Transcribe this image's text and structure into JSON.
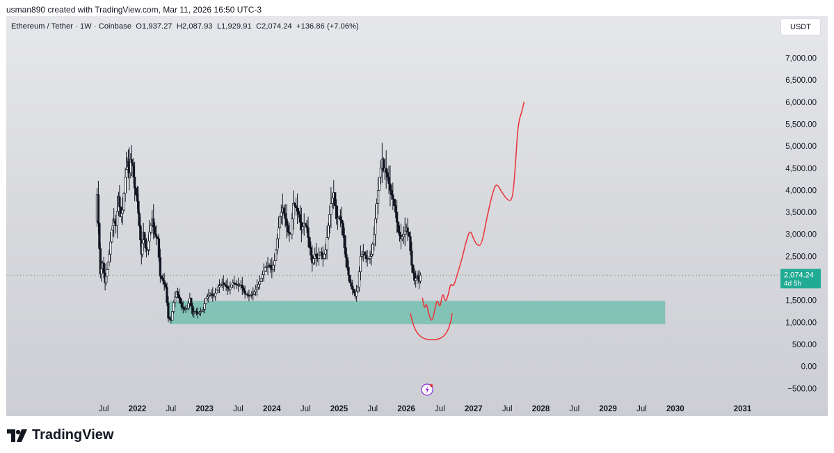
{
  "header": {
    "created_by": "usman890 created with TradingView.com, Mar 11, 2026 16:50 UTC-3"
  },
  "legend": {
    "symbol": "Ethereum / Tether · 1W · Coinbase",
    "open": "O1,937.27",
    "high": "H2,087.93",
    "low": "L1,929.91",
    "close": "C2,074.24",
    "change": "+136.86 (+7.06%)"
  },
  "currency_label": "USDT",
  "price_label": {
    "price": "2,074.24",
    "countdown": "4d 5h",
    "color": "#22ab94"
  },
  "brand": {
    "name": "TradingView"
  },
  "colors": {
    "candle": "#131722",
    "zone": "#7ac1b3",
    "drawing": "#e8383d",
    "text": "#131722"
  },
  "chart_data": {
    "type": "candlestick",
    "x_axis": {
      "tick_labels": [
        "Jul",
        "2022",
        "Jul",
        "2023",
        "Jul",
        "2024",
        "Jul",
        "2025",
        "Jul",
        "2026",
        "Jul",
        "2027",
        "Jul",
        "2028",
        "Jul",
        "2029",
        "Jul",
        "2030",
        "2031"
      ],
      "tick_dates": [
        2021.5,
        2022.0,
        2022.5,
        2023.0,
        2023.5,
        2024.0,
        2024.5,
        2025.0,
        2025.5,
        2026.0,
        2026.5,
        2027.0,
        2027.5,
        2028.0,
        2028.5,
        2029.0,
        2029.5,
        2030.0,
        2031.0
      ],
      "year_labels_bold": [
        "2022",
        "2023",
        "2024",
        "2025",
        "2026",
        "2027",
        "2028",
        "2029",
        "2030",
        "2031"
      ],
      "range": [
        2020.05,
        2031.45
      ]
    },
    "y_axis": {
      "tick_labels": [
        "7,000.00",
        "6,500.00",
        "6,000.00",
        "5,500.00",
        "5,000.00",
        "4,500.00",
        "4,000.00",
        "3,500.00",
        "3,000.00",
        "2,500.00",
        "1,500.00",
        "1,000.00",
        "500.00",
        "0.00",
        "−500.00"
      ],
      "tick_values": [
        7000,
        6500,
        6000,
        5500,
        5000,
        4500,
        4000,
        3500,
        3000,
        2500,
        1500,
        1000,
        500,
        0,
        -500
      ],
      "range": [
        -700,
        7450
      ],
      "position": "right"
    },
    "last_close": 2074.24,
    "price_path": [
      [
        2021.38,
        3300
      ],
      [
        2021.4,
        3900
      ],
      [
        2021.42,
        3250
      ],
      [
        2021.45,
        2100
      ],
      [
        2021.48,
        2350
      ],
      [
        2021.52,
        1900
      ],
      [
        2021.55,
        2200
      ],
      [
        2021.58,
        2550
      ],
      [
        2021.62,
        3100
      ],
      [
        2021.65,
        3300
      ],
      [
        2021.68,
        3200
      ],
      [
        2021.72,
        3850
      ],
      [
        2021.75,
        3400
      ],
      [
        2021.78,
        3550
      ],
      [
        2021.82,
        4300
      ],
      [
        2021.85,
        4650
      ],
      [
        2021.88,
        4400
      ],
      [
        2021.9,
        4700
      ],
      [
        2021.93,
        4550
      ],
      [
        2021.96,
        4050
      ],
      [
        2022.0,
        3750
      ],
      [
        2022.03,
        3200
      ],
      [
        2022.06,
        2550
      ],
      [
        2022.09,
        3050
      ],
      [
        2022.12,
        2700
      ],
      [
        2022.15,
        2650
      ],
      [
        2022.18,
        3050
      ],
      [
        2022.22,
        3350
      ],
      [
        2022.26,
        3000
      ],
      [
        2022.3,
        2900
      ],
      [
        2022.34,
        2050
      ],
      [
        2022.38,
        1950
      ],
      [
        2022.42,
        1800
      ],
      [
        2022.46,
        1100
      ],
      [
        2022.5,
        1050
      ],
      [
        2022.54,
        1450
      ],
      [
        2022.58,
        1700
      ],
      [
        2022.62,
        1550
      ],
      [
        2022.66,
        1350
      ],
      [
        2022.7,
        1300
      ],
      [
        2022.74,
        1320
      ],
      [
        2022.78,
        1550
      ],
      [
        2022.82,
        1200
      ],
      [
        2022.86,
        1250
      ],
      [
        2022.9,
        1200
      ],
      [
        2022.94,
        1250
      ],
      [
        2022.98,
        1300
      ],
      [
        2023.02,
        1550
      ],
      [
        2023.08,
        1650
      ],
      [
        2023.14,
        1600
      ],
      [
        2023.2,
        1800
      ],
      [
        2023.26,
        1900
      ],
      [
        2023.3,
        1850
      ],
      [
        2023.36,
        1750
      ],
      [
        2023.42,
        1900
      ],
      [
        2023.48,
        1850
      ],
      [
        2023.54,
        1850
      ],
      [
        2023.6,
        1650
      ],
      [
        2023.66,
        1600
      ],
      [
        2023.72,
        1650
      ],
      [
        2023.78,
        1800
      ],
      [
        2023.84,
        2000
      ],
      [
        2023.9,
        2250
      ],
      [
        2023.96,
        2300
      ],
      [
        2024.0,
        2200
      ],
      [
        2024.04,
        2400
      ],
      [
        2024.08,
        2900
      ],
      [
        2024.12,
        3400
      ],
      [
        2024.16,
        3600
      ],
      [
        2024.2,
        3350
      ],
      [
        2024.24,
        3050
      ],
      [
        2024.28,
        3000
      ],
      [
        2024.32,
        3700
      ],
      [
        2024.36,
        3600
      ],
      [
        2024.4,
        3450
      ],
      [
        2024.44,
        3100
      ],
      [
        2024.48,
        3250
      ],
      [
        2024.52,
        3150
      ],
      [
        2024.56,
        2700
      ],
      [
        2024.6,
        2350
      ],
      [
        2024.64,
        2550
      ],
      [
        2024.68,
        2450
      ],
      [
        2024.72,
        2600
      ],
      [
        2024.76,
        2450
      ],
      [
        2024.8,
        2650
      ],
      [
        2024.84,
        3200
      ],
      [
        2024.88,
        3700
      ],
      [
        2024.92,
        3950
      ],
      [
        2024.96,
        3350
      ],
      [
        2025.0,
        3400
      ],
      [
        2025.04,
        3250
      ],
      [
        2025.08,
        2700
      ],
      [
        2025.12,
        2250
      ],
      [
        2025.16,
        1900
      ],
      [
        2025.2,
        1750
      ],
      [
        2025.24,
        1600
      ],
      [
        2025.28,
        1800
      ],
      [
        2025.32,
        2500
      ],
      [
        2025.36,
        2600
      ],
      [
        2025.4,
        2450
      ],
      [
        2025.44,
        2450
      ],
      [
        2025.48,
        2550
      ],
      [
        2025.52,
        3000
      ],
      [
        2025.56,
        3700
      ],
      [
        2025.6,
        4300
      ],
      [
        2025.64,
        4700
      ],
      [
        2025.66,
        4450
      ],
      [
        2025.68,
        4500
      ],
      [
        2025.72,
        4300
      ],
      [
        2025.76,
        4000
      ],
      [
        2025.8,
        3800
      ],
      [
        2025.84,
        3500
      ],
      [
        2025.88,
        3050
      ],
      [
        2025.92,
        2900
      ],
      [
        2025.96,
        3000
      ],
      [
        2026.0,
        3150
      ],
      [
        2026.04,
        2950
      ],
      [
        2026.08,
        2300
      ],
      [
        2026.12,
        1950
      ],
      [
        2026.16,
        2050
      ],
      [
        2026.19,
        1937
      ],
      [
        2026.21,
        2074
      ]
    ],
    "annotations": [
      {
        "type": "zone",
        "label": "",
        "price_range": [
          960,
          1490
        ],
        "x_range": [
          2022.48,
          2029.85
        ],
        "color": "#7ac1b3"
      },
      {
        "type": "freehand_projection",
        "label": "",
        "color": "#e8383d",
        "points": [
          [
            2026.24,
            1550
          ],
          [
            2026.27,
            1300
          ],
          [
            2026.3,
            1450
          ],
          [
            2026.33,
            1200
          ],
          [
            2026.38,
            1000
          ],
          [
            2026.42,
            1250
          ],
          [
            2026.46,
            1550
          ],
          [
            2026.5,
            1300
          ],
          [
            2026.54,
            1700
          ],
          [
            2026.58,
            1450
          ],
          [
            2026.62,
            1600
          ],
          [
            2026.66,
            1900
          ],
          [
            2026.7,
            1800
          ],
          [
            2026.75,
            2050
          ],
          [
            2026.82,
            2400
          ],
          [
            2026.9,
            2900
          ],
          [
            2026.95,
            3100
          ],
          [
            2027.0,
            2900
          ],
          [
            2027.05,
            2750
          ],
          [
            2027.12,
            2750
          ],
          [
            2027.2,
            3400
          ],
          [
            2027.3,
            4050
          ],
          [
            2027.35,
            4150
          ],
          [
            2027.42,
            3950
          ],
          [
            2027.52,
            3750
          ],
          [
            2027.58,
            3800
          ],
          [
            2027.62,
            4500
          ],
          [
            2027.66,
            5500
          ],
          [
            2027.72,
            5800
          ],
          [
            2027.75,
            6000
          ]
        ]
      },
      {
        "type": "freehand_bowl",
        "label": "",
        "color": "#e8383d",
        "points": [
          [
            2026.06,
            1200
          ],
          [
            2026.12,
            850
          ],
          [
            2026.22,
            650
          ],
          [
            2026.35,
            600
          ],
          [
            2026.5,
            620
          ],
          [
            2026.6,
            750
          ],
          [
            2026.66,
            1000
          ],
          [
            2026.68,
            1200
          ]
        ]
      }
    ]
  }
}
